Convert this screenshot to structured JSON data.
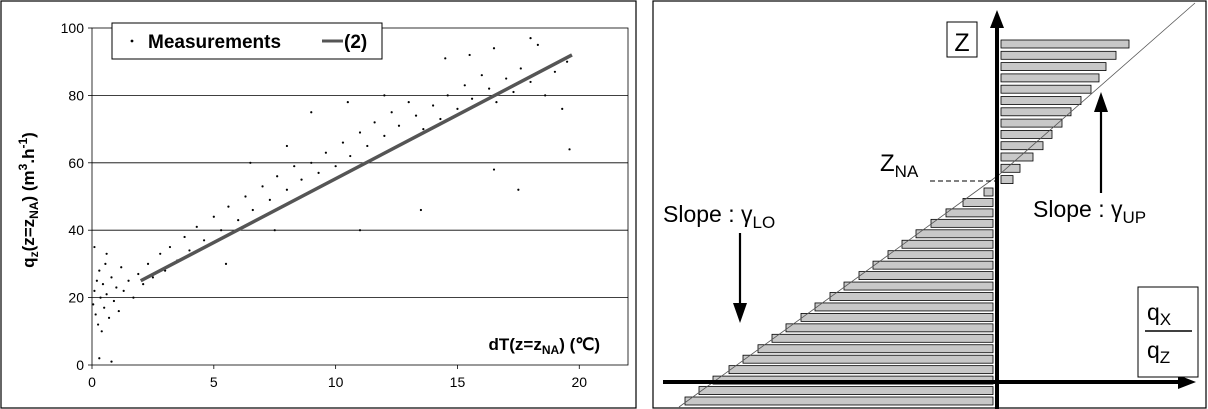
{
  "chart_data": [
    {
      "type": "scatter",
      "ylabel": "q",
      "ylabel_sub": "z",
      "ylabel_rest": "(z=z",
      "ylabel_sub2": "NA",
      "ylabel_unit": ") (m",
      "ylabel_sup": "3",
      "ylabel_unit2": ".h",
      "ylabel_sup2": "-1",
      "ylabel_end": ")",
      "xlabel": "dT(z=z",
      "xlabel_sub": "NA",
      "xlabel_end": ") (℃)",
      "xlim": [
        0,
        22
      ],
      "ylim": [
        0,
        100
      ],
      "xticks": [
        "0",
        "5",
        "10",
        "15",
        "20"
      ],
      "yticks": [
        "0",
        "20",
        "40",
        "60",
        "80",
        "100"
      ],
      "gridlines_y": [
        20,
        40,
        60,
        80
      ],
      "legend": {
        "position": "top-left",
        "scatter_label": "Measurements",
        "line_label": "(2)"
      },
      "series": [
        {
          "name": "Measurements",
          "kind": "scatter",
          "points": [
            [
              0.05,
              18
            ],
            [
              0.1,
              22
            ],
            [
              0.15,
              15
            ],
            [
              0.2,
              25
            ],
            [
              0.25,
              12
            ],
            [
              0.3,
              28
            ],
            [
              0.35,
              20
            ],
            [
              0.4,
              10
            ],
            [
              0.45,
              24
            ],
            [
              0.5,
              17
            ],
            [
              0.55,
              30
            ],
            [
              0.6,
              21
            ],
            [
              0.7,
              14
            ],
            [
              0.8,
              26
            ],
            [
              0.9,
              19
            ],
            [
              1.0,
              23
            ],
            [
              1.1,
              16
            ],
            [
              1.2,
              29
            ],
            [
              1.3,
              22
            ],
            [
              1.5,
              25
            ],
            [
              1.7,
              20
            ],
            [
              1.9,
              27
            ],
            [
              2.1,
              24
            ],
            [
              2.3,
              30
            ],
            [
              2.5,
              26
            ],
            [
              2.8,
              33
            ],
            [
              3.0,
              28
            ],
            [
              3.2,
              35
            ],
            [
              3.5,
              31
            ],
            [
              3.8,
              38
            ],
            [
              4.0,
              34
            ],
            [
              4.3,
              41
            ],
            [
              4.6,
              37
            ],
            [
              5.0,
              44
            ],
            [
              5.3,
              40
            ],
            [
              5.6,
              47
            ],
            [
              6.0,
              43
            ],
            [
              6.3,
              50
            ],
            [
              6.6,
              46
            ],
            [
              7.0,
              53
            ],
            [
              7.3,
              49
            ],
            [
              7.6,
              56
            ],
            [
              8.0,
              52
            ],
            [
              8.3,
              59
            ],
            [
              8.6,
              55
            ],
            [
              9.0,
              60
            ],
            [
              9.3,
              57
            ],
            [
              9.6,
              63
            ],
            [
              10.0,
              59
            ],
            [
              10.3,
              66
            ],
            [
              10.6,
              62
            ],
            [
              11.0,
              69
            ],
            [
              11.3,
              65
            ],
            [
              11.6,
              72
            ],
            [
              12.0,
              68
            ],
            [
              12.3,
              75
            ],
            [
              12.6,
              71
            ],
            [
              13.0,
              78
            ],
            [
              13.3,
              74
            ],
            [
              13.6,
              70
            ],
            [
              14.0,
              77
            ],
            [
              14.3,
              73
            ],
            [
              14.6,
              80
            ],
            [
              15.0,
              76
            ],
            [
              15.3,
              83
            ],
            [
              15.6,
              79
            ],
            [
              16.0,
              86
            ],
            [
              16.3,
              82
            ],
            [
              16.6,
              78
            ],
            [
              17.0,
              85
            ],
            [
              17.3,
              81
            ],
            [
              17.6,
              88
            ],
            [
              18.0,
              84
            ],
            [
              18.3,
              95
            ],
            [
              18.6,
              80
            ],
            [
              19.0,
              87
            ],
            [
              19.3,
              76
            ],
            [
              19.6,
              64
            ],
            [
              19.5,
              90
            ],
            [
              17.5,
              52
            ],
            [
              16.5,
              58
            ],
            [
              11.0,
              40
            ],
            [
              13.5,
              46
            ],
            [
              8.0,
              65
            ],
            [
              6.5,
              60
            ],
            [
              10.5,
              78
            ],
            [
              12.0,
              80
            ],
            [
              0.3,
              2
            ],
            [
              0.8,
              1
            ],
            [
              0.1,
              35
            ],
            [
              0.6,
              33
            ],
            [
              14.5,
              91
            ],
            [
              15.5,
              92
            ],
            [
              16.5,
              94
            ],
            [
              18.0,
              97
            ],
            [
              9.0,
              75
            ],
            [
              7.5,
              40
            ],
            [
              5.5,
              30
            ]
          ]
        },
        {
          "name": "(2)",
          "kind": "line",
          "points": [
            [
              2.0,
              25
            ],
            [
              19.7,
              92
            ]
          ]
        }
      ]
    },
    {
      "type": "diagram",
      "axis_z_label": "Z",
      "axis_x_label_num": "q",
      "axis_x_label_num_sub": "X",
      "axis_x_label_den": "q",
      "axis_x_label_den_sub": "Z",
      "zna_label": "Z",
      "zna_sub": "NA",
      "slope_lo_text": "Slope : γ",
      "slope_lo_sub": "LO",
      "slope_up_text": "Slope : γ",
      "slope_up_sub": "UP",
      "upper_bars": [
        0.12,
        0.19,
        0.32,
        0.42,
        0.51,
        0.61,
        0.7,
        0.8,
        0.9,
        0.98,
        1.05,
        1.15,
        1.28
      ],
      "lower_bars": [
        0.09,
        0.3,
        0.47,
        0.62,
        0.77,
        0.91,
        1.05,
        1.2,
        1.34,
        1.49,
        1.63,
        1.78,
        1.92,
        2.07,
        2.21,
        2.35,
        2.5,
        2.64,
        2.8,
        2.94,
        3.08
      ]
    }
  ]
}
